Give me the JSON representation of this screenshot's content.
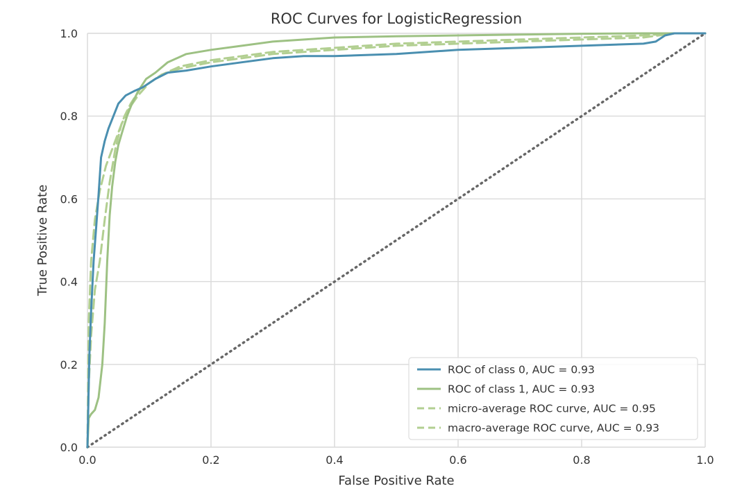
{
  "chart_data": {
    "type": "line",
    "title": "ROC Curves for LogisticRegression",
    "xlabel": "False Positive Rate",
    "ylabel": "True Positive Rate",
    "xlim": [
      0.0,
      1.0
    ],
    "ylim": [
      0.0,
      1.0
    ],
    "x_ticks": [
      "0.0",
      "0.2",
      "0.4",
      "0.6",
      "0.8",
      "1.0"
    ],
    "y_ticks": [
      "0.0",
      "0.2",
      "0.4",
      "0.6",
      "0.8",
      "1.0"
    ],
    "grid": true,
    "legend_position": "lower-right",
    "series": [
      {
        "name": "ROC of class 0, AUC = 0.93",
        "color": "#4a8fb0",
        "style": "solid",
        "x": [
          0.0,
          0.003,
          0.006,
          0.01,
          0.014,
          0.018,
          0.022,
          0.028,
          0.034,
          0.042,
          0.05,
          0.062,
          0.075,
          0.09,
          0.11,
          0.13,
          0.16,
          0.2,
          0.25,
          0.3,
          0.35,
          0.4,
          0.5,
          0.6,
          0.7,
          0.8,
          0.9,
          0.92,
          0.935,
          0.95,
          1.0
        ],
        "y": [
          0.0,
          0.22,
          0.33,
          0.45,
          0.53,
          0.61,
          0.7,
          0.74,
          0.77,
          0.8,
          0.83,
          0.85,
          0.86,
          0.87,
          0.89,
          0.905,
          0.91,
          0.92,
          0.93,
          0.94,
          0.945,
          0.945,
          0.95,
          0.96,
          0.965,
          0.97,
          0.975,
          0.98,
          0.995,
          1.0,
          1.0
        ]
      },
      {
        "name": "ROC of class 1, AUC = 0.93",
        "color": "#9dc183",
        "style": "solid",
        "x": [
          0.0,
          0.002,
          0.006,
          0.012,
          0.018,
          0.024,
          0.028,
          0.032,
          0.036,
          0.04,
          0.045,
          0.05,
          0.056,
          0.064,
          0.072,
          0.082,
          0.095,
          0.11,
          0.13,
          0.16,
          0.2,
          0.25,
          0.3,
          0.4,
          0.5,
          0.6,
          0.7,
          0.8,
          0.9,
          1.0
        ],
        "y": [
          0.0,
          0.07,
          0.08,
          0.09,
          0.12,
          0.2,
          0.3,
          0.45,
          0.56,
          0.63,
          0.69,
          0.73,
          0.76,
          0.8,
          0.83,
          0.86,
          0.89,
          0.905,
          0.93,
          0.95,
          0.96,
          0.97,
          0.98,
          0.99,
          0.993,
          0.995,
          0.997,
          0.999,
          1.0,
          1.0
        ]
      },
      {
        "name": "micro-average ROC curve, AUC = 0.95",
        "color": "#b2cf91",
        "style": "dashed",
        "x": [
          0.0,
          0.002,
          0.006,
          0.012,
          0.02,
          0.03,
          0.04,
          0.05,
          0.06,
          0.07,
          0.085,
          0.1,
          0.12,
          0.15,
          0.2,
          0.25,
          0.3,
          0.4,
          0.5,
          0.6,
          0.7,
          0.8,
          0.9,
          0.95,
          1.0
        ],
        "y": [
          0.0,
          0.3,
          0.45,
          0.55,
          0.62,
          0.68,
          0.72,
          0.76,
          0.8,
          0.83,
          0.865,
          0.88,
          0.9,
          0.92,
          0.935,
          0.945,
          0.955,
          0.965,
          0.975,
          0.98,
          0.985,
          0.99,
          0.995,
          1.0,
          1.0
        ]
      },
      {
        "name": "macro-average ROC curve, AUC = 0.93",
        "color": "#b2cf91",
        "style": "dashed",
        "x": [
          0.0,
          0.002,
          0.006,
          0.012,
          0.02,
          0.028,
          0.036,
          0.045,
          0.055,
          0.068,
          0.082,
          0.1,
          0.12,
          0.15,
          0.2,
          0.25,
          0.3,
          0.4,
          0.5,
          0.6,
          0.7,
          0.8,
          0.9,
          0.95,
          1.0
        ],
        "y": [
          0.0,
          0.15,
          0.27,
          0.38,
          0.45,
          0.55,
          0.64,
          0.72,
          0.78,
          0.82,
          0.85,
          0.88,
          0.9,
          0.915,
          0.93,
          0.94,
          0.95,
          0.96,
          0.97,
          0.975,
          0.98,
          0.985,
          0.99,
          1.0,
          1.0
        ]
      }
    ],
    "reference_line": {
      "color": "#666666",
      "style": "dotted",
      "x": [
        0.0,
        1.0
      ],
      "y": [
        0.0,
        1.0
      ]
    }
  }
}
